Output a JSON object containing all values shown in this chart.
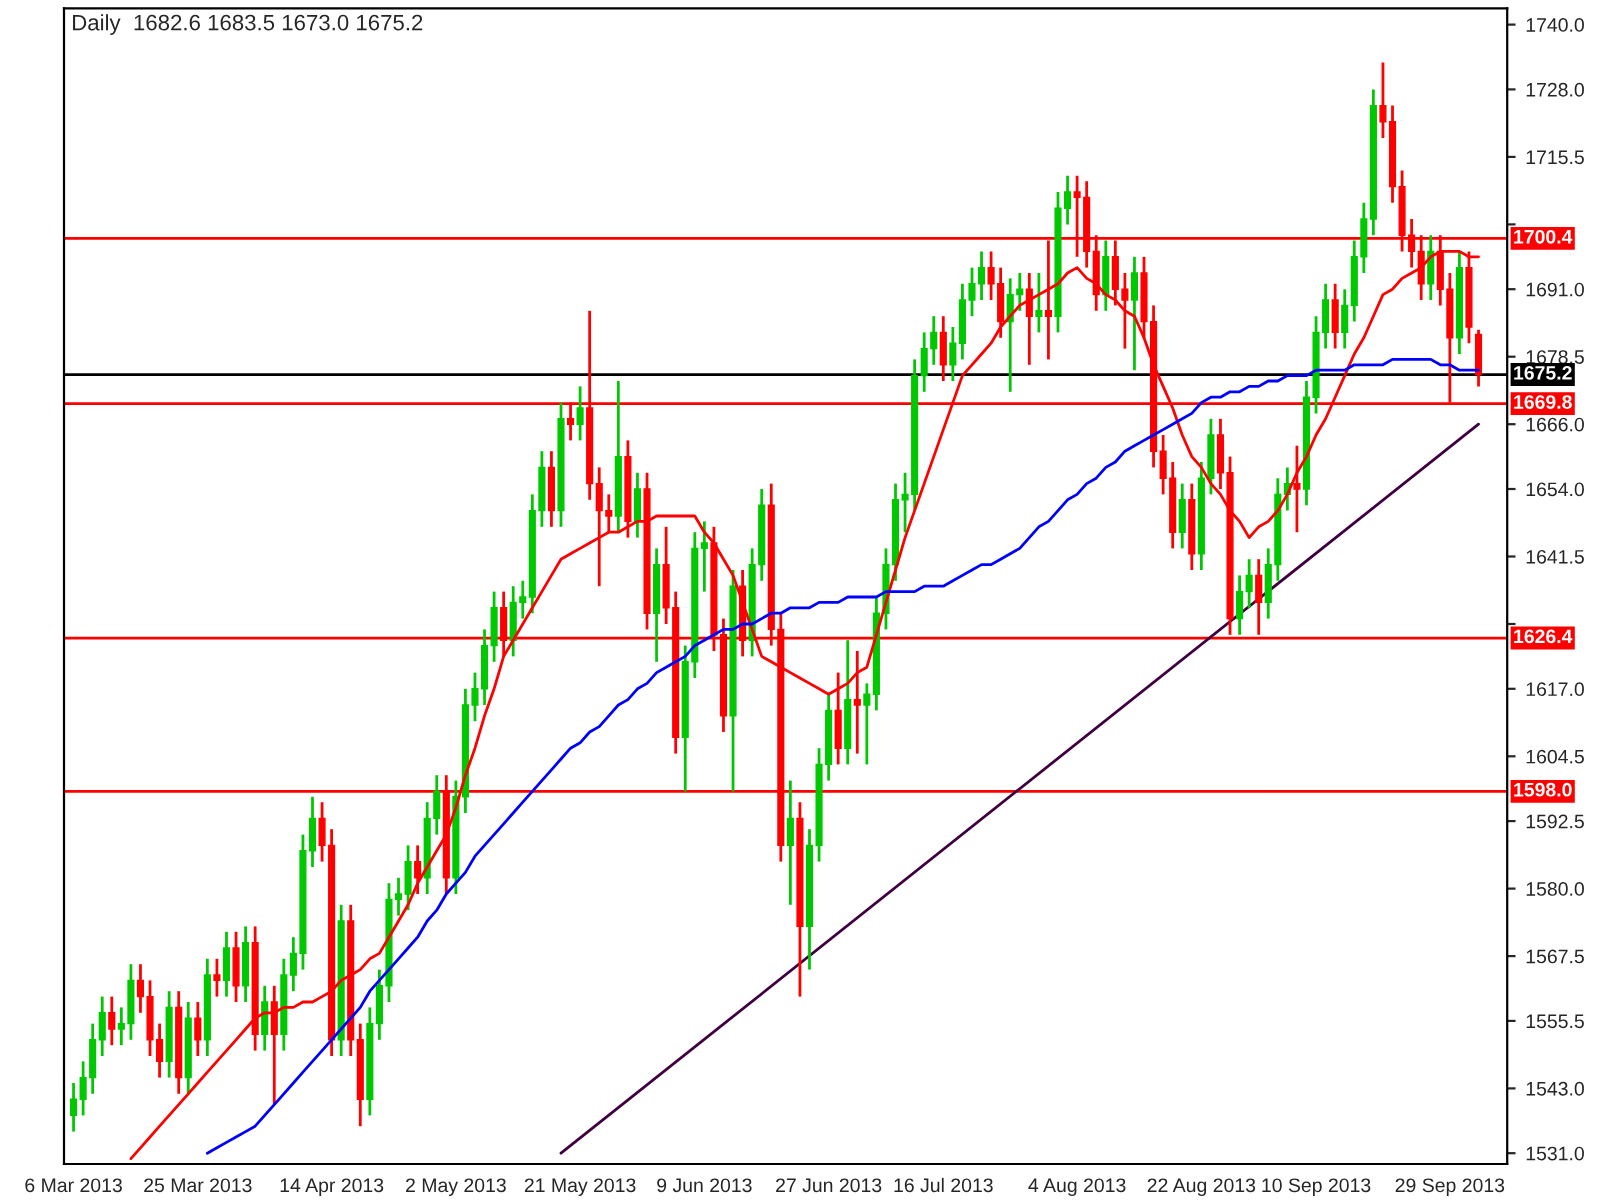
{
  "chart_data": {
    "type": "candlestick",
    "title": "Daily  1682.6 1683.5 1673.0 1675.2",
    "categories": [
      "6 Mar 2013",
      null,
      null,
      null,
      null,
      null,
      null,
      null,
      null,
      null,
      null,
      null,
      null,
      "25 Mar 2013",
      null,
      null,
      null,
      null,
      null,
      null,
      null,
      null,
      null,
      null,
      null,
      null,
      null,
      "14 Apr 2013",
      null,
      null,
      null,
      null,
      null,
      null,
      null,
      null,
      null,
      null,
      null,
      null,
      "2 May 2013",
      null,
      null,
      null,
      null,
      null,
      null,
      null,
      null,
      null,
      null,
      null,
      null,
      "21 May 2013",
      null,
      null,
      null,
      null,
      null,
      null,
      null,
      null,
      null,
      null,
      null,
      null,
      "9 Jun 2013",
      null,
      null,
      null,
      null,
      null,
      null,
      null,
      null,
      null,
      null,
      null,
      null,
      "27 Jun 2013",
      null,
      null,
      null,
      null,
      null,
      null,
      null,
      null,
      null,
      null,
      null,
      "16 Jul 2013",
      null,
      null,
      null,
      null,
      null,
      null,
      null,
      null,
      null,
      null,
      null,
      null,
      null,
      "4 Aug 2013",
      null,
      null,
      null,
      null,
      null,
      null,
      null,
      null,
      null,
      null,
      null,
      null,
      "22 Aug 2013",
      null,
      null,
      null,
      null,
      null,
      null,
      null,
      null,
      null,
      null,
      null,
      "10 Sep 2013",
      null,
      null,
      null,
      null,
      null,
      null,
      null,
      null,
      null,
      null,
      null,
      null,
      null,
      "29 Sep 2013",
      null,
      null,
      null
    ],
    "ohlc": [
      [
        1538,
        1544,
        1535,
        1541
      ],
      [
        1541,
        1548,
        1538,
        1545
      ],
      [
        1545,
        1555,
        1542,
        1552
      ],
      [
        1552,
        1560,
        1549,
        1557
      ],
      [
        1557,
        1560,
        1551,
        1554
      ],
      [
        1554,
        1558,
        1551,
        1555
      ],
      [
        1555,
        1566,
        1552,
        1563
      ],
      [
        1563,
        1566,
        1557,
        1560
      ],
      [
        1560,
        1563,
        1549,
        1552
      ],
      [
        1552,
        1555,
        1545,
        1548
      ],
      [
        1548,
        1561,
        1545,
        1558
      ],
      [
        1558,
        1561,
        1542,
        1545
      ],
      [
        1545,
        1559,
        1542,
        1556
      ],
      [
        1556,
        1559,
        1549,
        1552
      ],
      [
        1552,
        1567,
        1549,
        1564
      ],
      [
        1564,
        1567,
        1560,
        1563
      ],
      [
        1563,
        1572,
        1560,
        1569
      ],
      [
        1569,
        1572,
        1559,
        1562
      ],
      [
        1562,
        1573,
        1559,
        1570
      ],
      [
        1570,
        1573,
        1550,
        1553
      ],
      [
        1553,
        1562,
        1550,
        1559
      ],
      [
        1559,
        1562,
        1540,
        1553
      ],
      [
        1553,
        1567,
        1550,
        1564
      ],
      [
        1564,
        1571,
        1561,
        1568
      ],
      [
        1568,
        1590,
        1565,
        1587
      ],
      [
        1587,
        1597,
        1584,
        1593
      ],
      [
        1593,
        1596,
        1585,
        1588
      ],
      [
        1588,
        1591,
        1549,
        1552
      ],
      [
        1552,
        1577,
        1549,
        1574
      ],
      [
        1574,
        1577,
        1549,
        1552
      ],
      [
        1552,
        1555,
        1536,
        1541
      ],
      [
        1541,
        1558,
        1538,
        1555
      ],
      [
        1555,
        1565,
        1552,
        1562
      ],
      [
        1562,
        1581,
        1559,
        1578
      ],
      [
        1578,
        1582,
        1575,
        1579
      ],
      [
        1579,
        1588,
        1576,
        1585
      ],
      [
        1585,
        1588,
        1579,
        1582
      ],
      [
        1582,
        1596,
        1579,
        1593
      ],
      [
        1593,
        1601,
        1590,
        1598
      ],
      [
        1598,
        1601,
        1579,
        1582
      ],
      [
        1582,
        1600,
        1579,
        1597
      ],
      [
        1597,
        1617,
        1594,
        1614
      ],
      [
        1614,
        1620,
        1611,
        1617
      ],
      [
        1617,
        1628,
        1614,
        1625
      ],
      [
        1625,
        1635,
        1622,
        1632
      ],
      [
        1632,
        1635,
        1623,
        1626
      ],
      [
        1626,
        1636,
        1623,
        1633
      ],
      [
        1633,
        1637,
        1630,
        1634
      ],
      [
        1634,
        1653,
        1631,
        1650
      ],
      [
        1650,
        1661,
        1647,
        1658
      ],
      [
        1658,
        1661,
        1647,
        1650
      ],
      [
        1650,
        1670,
        1647,
        1667
      ],
      [
        1667,
        1670,
        1663,
        1666
      ],
      [
        1666,
        1673,
        1663,
        1669
      ],
      [
        1669,
        1687,
        1652,
        1655
      ],
      [
        1655,
        1658,
        1636,
        1650
      ],
      [
        1650,
        1653,
        1646,
        1649
      ],
      [
        1649,
        1674,
        1646,
        1660
      ],
      [
        1660,
        1663,
        1645,
        1648
      ],
      [
        1648,
        1657,
        1645,
        1654
      ],
      [
        1654,
        1657,
        1628,
        1631
      ],
      [
        1631,
        1643,
        1622,
        1640
      ],
      [
        1640,
        1647,
        1629,
        1632
      ],
      [
        1632,
        1635,
        1605,
        1608
      ],
      [
        1608,
        1625,
        1598,
        1622
      ],
      [
        1622,
        1646,
        1619,
        1643
      ],
      [
        1643,
        1648,
        1635,
        1644
      ],
      [
        1644,
        1647,
        1624,
        1627
      ],
      [
        1627,
        1630,
        1609,
        1612
      ],
      [
        1612,
        1639,
        1598,
        1636
      ],
      [
        1636,
        1639,
        1623,
        1626
      ],
      [
        1626,
        1643,
        1623,
        1640
      ],
      [
        1640,
        1654,
        1637,
        1651
      ],
      [
        1651,
        1655,
        1625,
        1628
      ],
      [
        1628,
        1631,
        1585,
        1588
      ],
      [
        1588,
        1600,
        1577,
        1593
      ],
      [
        1593,
        1596,
        1560,
        1573
      ],
      [
        1573,
        1591,
        1565,
        1588
      ],
      [
        1588,
        1606,
        1585,
        1603
      ],
      [
        1603,
        1616,
        1600,
        1613
      ],
      [
        1613,
        1620,
        1603,
        1606
      ],
      [
        1606,
        1626,
        1603,
        1615
      ],
      [
        1615,
        1624,
        1605,
        1614
      ],
      [
        1614,
        1618,
        1603,
        1616
      ],
      [
        1616,
        1634,
        1613,
        1631
      ],
      [
        1631,
        1643,
        1628,
        1640
      ],
      [
        1640,
        1655,
        1637,
        1652
      ],
      [
        1652,
        1657,
        1646,
        1653
      ],
      [
        1653,
        1678,
        1650,
        1675
      ],
      [
        1675,
        1683,
        1672,
        1680
      ],
      [
        1680,
        1686,
        1677,
        1683
      ],
      [
        1683,
        1686,
        1674,
        1677
      ],
      [
        1677,
        1684,
        1674,
        1681
      ],
      [
        1681,
        1692,
        1678,
        1689
      ],
      [
        1689,
        1695,
        1686,
        1692
      ],
      [
        1692,
        1698,
        1689,
        1695
      ],
      [
        1695,
        1698,
        1689,
        1692
      ],
      [
        1692,
        1695,
        1682,
        1685
      ],
      [
        1685,
        1693,
        1672,
        1690
      ],
      [
        1690,
        1694,
        1687,
        1691
      ],
      [
        1691,
        1694,
        1677,
        1686
      ],
      [
        1686,
        1694,
        1683,
        1687
      ],
      [
        1687,
        1700,
        1678,
        1686
      ],
      [
        1686,
        1709,
        1683,
        1706
      ],
      [
        1706,
        1712,
        1703,
        1709
      ],
      [
        1709,
        1712,
        1697,
        1708
      ],
      [
        1708,
        1711,
        1695,
        1698
      ],
      [
        1698,
        1701,
        1687,
        1690
      ],
      [
        1690,
        1700,
        1687,
        1697
      ],
      [
        1697,
        1700,
        1688,
        1691
      ],
      [
        1691,
        1694,
        1680,
        1689
      ],
      [
        1689,
        1697,
        1676,
        1694
      ],
      [
        1694,
        1697,
        1682,
        1685
      ],
      [
        1685,
        1688,
        1658,
        1661
      ],
      [
        1661,
        1664,
        1653,
        1656
      ],
      [
        1656,
        1659,
        1643,
        1646
      ],
      [
        1646,
        1655,
        1643,
        1652
      ],
      [
        1652,
        1655,
        1639,
        1642
      ],
      [
        1642,
        1659,
        1639,
        1656
      ],
      [
        1656,
        1667,
        1653,
        1664
      ],
      [
        1664,
        1667,
        1654,
        1657
      ],
      [
        1657,
        1660,
        1627,
        1630
      ],
      [
        1630,
        1638,
        1627,
        1635
      ],
      [
        1635,
        1641,
        1632,
        1638
      ],
      [
        1638,
        1641,
        1627,
        1633
      ],
      [
        1633,
        1643,
        1630,
        1640
      ],
      [
        1640,
        1656,
        1637,
        1653
      ],
      [
        1653,
        1658,
        1650,
        1655
      ],
      [
        1655,
        1662,
        1646,
        1654
      ],
      [
        1654,
        1674,
        1651,
        1671
      ],
      [
        1671,
        1686,
        1668,
        1683
      ],
      [
        1683,
        1692,
        1680,
        1689
      ],
      [
        1689,
        1692,
        1680,
        1683
      ],
      [
        1683,
        1691,
        1680,
        1688
      ],
      [
        1688,
        1700,
        1685,
        1697
      ],
      [
        1697,
        1707,
        1694,
        1704
      ],
      [
        1704,
        1728,
        1701,
        1725
      ],
      [
        1725,
        1733,
        1719,
        1722
      ],
      [
        1722,
        1725,
        1707,
        1710
      ],
      [
        1710,
        1713,
        1698,
        1701
      ],
      [
        1701,
        1704,
        1695,
        1698
      ],
      [
        1698,
        1701,
        1689,
        1692
      ],
      [
        1692,
        1701,
        1689,
        1698
      ],
      [
        1698,
        1701,
        1688,
        1691
      ],
      [
        1691,
        1694,
        1670,
        1682
      ],
      [
        1682,
        1698,
        1679,
        1695
      ],
      [
        1695,
        1698,
        1681,
        1684
      ],
      [
        1682.6,
        1683.5,
        1673.0,
        1675.2
      ]
    ],
    "colors": [
      "#00c800",
      "#00c800",
      "#00c800",
      "#00c800",
      "#ff0000",
      "#00c800",
      "#00c800",
      "#ff0000",
      "#ff0000",
      "#ff0000",
      "#00c800",
      "#ff0000",
      "#00c800",
      "#ff0000",
      "#00c800",
      "#ff0000",
      "#00c800",
      "#ff0000",
      "#00c800",
      "#ff0000",
      "#00c800",
      "#ff0000",
      "#00c800",
      "#00c800",
      "#00c800",
      "#00c800",
      "#ff0000",
      "#ff0000",
      "#00c800",
      "#ff0000",
      "#ff0000",
      "#00c800",
      "#00c800",
      "#00c800",
      "#00c800",
      "#00c800",
      "#ff0000",
      "#00c800",
      "#00c800",
      "#ff0000",
      "#00c800",
      "#00c800",
      "#00c800",
      "#00c800",
      "#00c800",
      "#ff0000",
      "#00c800",
      "#00c800",
      "#00c800",
      "#00c800",
      "#ff0000",
      "#00c800",
      "#ff0000",
      "#00c800",
      "#ff0000",
      "#ff0000",
      "#ff0000",
      "#00c800",
      "#ff0000",
      "#00c800",
      "#ff0000",
      "#00c800",
      "#ff0000",
      "#ff0000",
      "#00c800",
      "#00c800",
      "#00c800",
      "#ff0000",
      "#ff0000",
      "#00c800",
      "#ff0000",
      "#00c800",
      "#00c800",
      "#ff0000",
      "#ff0000",
      "#00c800",
      "#ff0000",
      "#00c800",
      "#00c800",
      "#00c800",
      "#ff0000",
      "#00c800",
      "#ff0000",
      "#00c800",
      "#00c800",
      "#00c800",
      "#00c800",
      "#00c800",
      "#00c800",
      "#00c800",
      "#00c800",
      "#ff0000",
      "#00c800",
      "#00c800",
      "#00c800",
      "#00c800",
      "#ff0000",
      "#ff0000",
      "#00c800",
      "#00c800",
      "#ff0000",
      "#00c800",
      "#ff0000",
      "#00c800",
      "#00c800",
      "#ff0000",
      "#ff0000",
      "#ff0000",
      "#00c800",
      "#ff0000",
      "#ff0000",
      "#00c800",
      "#ff0000",
      "#ff0000",
      "#ff0000",
      "#ff0000",
      "#00c800",
      "#ff0000",
      "#00c800",
      "#00c800",
      "#ff0000",
      "#ff0000",
      "#00c800",
      "#00c800",
      "#ff0000",
      "#00c800",
      "#00c800",
      "#00c800",
      "#ff0000",
      "#00c800",
      "#00c800",
      "#00c800",
      "#ff0000",
      "#00c800",
      "#00c800",
      "#00c800",
      "#00c800",
      "#ff0000",
      "#ff0000",
      "#ff0000",
      "#ff0000",
      "#ff0000",
      "#00c800",
      "#ff0000",
      "#ff0000",
      "#00c800",
      "#ff0000",
      "#ff0000"
    ],
    "series": [
      {
        "type": "line",
        "color": "#ff0000",
        "values": [
          null,
          null,
          null,
          null,
          null,
          null,
          1530,
          1532,
          1534,
          1536,
          1538,
          1540,
          1542,
          1544,
          1546,
          1548,
          1550,
          1552,
          1554,
          1556,
          1557,
          1557,
          1558,
          1558,
          1559,
          1559,
          1560,
          1561,
          1563,
          1564,
          1565,
          1567,
          1568,
          1571,
          1574,
          1577,
          1581,
          1584,
          1587,
          1590,
          1595,
          1601,
          1606,
          1612,
          1617,
          1623,
          1626,
          1629,
          1632,
          1635,
          1638,
          1641,
          1642,
          1643,
          1644,
          1645,
          1646,
          1646,
          1647,
          1648,
          1648,
          1649,
          1649,
          1649,
          1649,
          1649,
          1646,
          1644,
          1641,
          1638,
          1633,
          1628,
          1623,
          1622,
          1621,
          1620,
          1619,
          1618,
          1617,
          1616,
          1617,
          1618,
          1620,
          1621,
          1627,
          1633,
          1639,
          1645,
          1650,
          1655,
          1660,
          1665,
          1670,
          1675,
          1677,
          1679,
          1681,
          1684,
          1686,
          1688,
          1689,
          1690,
          1691,
          1692,
          1694,
          1695,
          1693,
          1692,
          1690,
          1689,
          1687,
          1686,
          1682,
          1677,
          1673,
          1669,
          1664,
          1660,
          1658,
          1655,
          1653,
          1650,
          1648,
          1645,
          1647,
          1648,
          1650,
          1653,
          1657,
          1660,
          1664,
          1667,
          1671,
          1675,
          1679,
          1682,
          1686,
          1690,
          1691,
          1693,
          1694,
          1695,
          1697,
          1698,
          1698,
          1698,
          1697,
          1697
        ]
      },
      {
        "type": "line",
        "color": "#0000ff",
        "values": [
          null,
          null,
          null,
          null,
          null,
          null,
          null,
          null,
          null,
          null,
          null,
          null,
          null,
          null,
          1531,
          1532,
          1533,
          1534,
          1535,
          1536,
          1538,
          1540,
          1542,
          1544,
          1546,
          1548,
          1550,
          1552,
          1554,
          1556,
          1558,
          1561,
          1563,
          1565,
          1567,
          1569,
          1571,
          1574,
          1576,
          1579,
          1581,
          1583,
          1586,
          1588,
          1590,
          1592,
          1594,
          1596,
          1598,
          1600,
          1602,
          1604,
          1606,
          1607,
          1609,
          1610,
          1612,
          1614,
          1615,
          1617,
          1618,
          1620,
          1621,
          1622,
          1623,
          1625,
          1626,
          1627,
          1628,
          1628,
          1629,
          1629,
          1630,
          1631,
          1631,
          1632,
          1632,
          1632,
          1633,
          1633,
          1633,
          1634,
          1634,
          1634,
          1634,
          1635,
          1635,
          1635,
          1635,
          1636,
          1636,
          1636,
          1637,
          1638,
          1639,
          1640,
          1640,
          1641,
          1642,
          1643,
          1645,
          1647,
          1648,
          1650,
          1652,
          1653,
          1655,
          1656,
          1658,
          1659,
          1661,
          1662,
          1663,
          1664,
          1665,
          1666,
          1667,
          1668,
          1670,
          1671,
          1671,
          1672,
          1672,
          1673,
          1673,
          1674,
          1674,
          1675,
          1675,
          1675,
          1676,
          1676,
          1676,
          1676,
          1677,
          1677,
          1677,
          1677,
          1678,
          1678,
          1678,
          1678,
          1678,
          1677,
          1677,
          1676,
          1676,
          1676
        ]
      },
      {
        "type": "line",
        "color": "#400040",
        "values": [
          null,
          null,
          null,
          null,
          null,
          null,
          null,
          null,
          null,
          null,
          null,
          null,
          null,
          null,
          null,
          null,
          null,
          null,
          null,
          null,
          null,
          null,
          null,
          null,
          null,
          null,
          null,
          null,
          null,
          null,
          null,
          null,
          null,
          null,
          null,
          null,
          null,
          null,
          null,
          null,
          null,
          null,
          null,
          null,
          null,
          null,
          null,
          null,
          null,
          null,
          null,
          1531,
          null,
          null,
          null,
          null,
          null,
          null,
          null,
          null,
          null,
          null,
          null,
          null,
          null,
          null,
          null,
          null,
          null,
          null,
          null,
          null,
          null,
          null,
          null,
          null,
          null,
          null,
          null,
          null,
          null,
          null,
          null,
          null,
          null,
          null,
          null,
          null,
          null,
          null,
          null,
          null,
          null,
          null,
          null,
          null,
          null,
          null,
          null,
          null,
          null,
          null,
          null,
          null,
          null,
          null,
          null,
          null,
          null,
          null,
          null,
          null,
          null,
          null,
          null,
          null,
          null,
          null,
          null,
          null,
          null,
          null,
          null,
          null,
          null,
          null,
          null,
          null,
          null,
          null,
          null,
          null,
          null,
          null,
          null,
          null,
          null,
          null,
          null,
          null,
          null,
          null,
          null,
          null,
          null,
          null,
          null,
          1666
        ]
      }
    ],
    "ref_lines": [
      {
        "axis": "y",
        "value": 1700.4,
        "label": "1700.4",
        "color": "#ff0000"
      },
      {
        "axis": "y",
        "value": 1675.2,
        "label": "1675.2",
        "color": "#000000"
      },
      {
        "axis": "y",
        "value": 1669.8,
        "label": "1669.8",
        "color": "#ff0000"
      },
      {
        "axis": "y",
        "value": 1626.4,
        "label": "1626.4",
        "color": "#ff0000"
      },
      {
        "axis": "y",
        "value": 1598.0,
        "label": "1598.0",
        "color": "#ff0000"
      }
    ],
    "ylim": [
      1529,
      1743
    ],
    "yticks": [
      {
        "value": 1531.0,
        "label": "1531.0"
      },
      {
        "value": 1543.0,
        "label": "1543.0"
      },
      {
        "value": 1555.5,
        "label": "1555.5"
      },
      {
        "value": 1567.5,
        "label": "1567.5"
      },
      {
        "value": 1580.0,
        "label": "1580.0"
      },
      {
        "value": 1592.5,
        "label": "1592.5"
      },
      {
        "value": 1604.5,
        "label": "1604.5"
      },
      {
        "value": 1617.0,
        "label": "1617.0"
      },
      {
        "value": 1629.0,
        "label": null
      },
      {
        "value": 1641.5,
        "label": "1641.5"
      },
      {
        "value": 1654.0,
        "label": "1654.0"
      },
      {
        "value": 1666.0,
        "label": "1666.0"
      },
      {
        "value": 1678.5,
        "label": "1678.5"
      },
      {
        "value": 1691.0,
        "label": "1691.0"
      },
      {
        "value": 1703.0,
        "label": null
      },
      {
        "value": 1715.5,
        "label": "1715.5"
      },
      {
        "value": 1728.0,
        "label": "1728.0"
      },
      {
        "value": 1740.0,
        "label": "1740.0"
      }
    ]
  }
}
